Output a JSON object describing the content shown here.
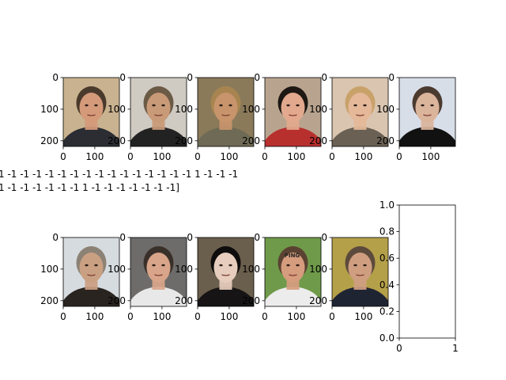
{
  "chart_data": [
    {
      "type": "image",
      "subject": "man-in-suit-speaking",
      "colors": {
        "bg": "#c9b28f",
        "skin": "#d49a7a",
        "hair": "#4a3a2c",
        "body": "#2b2d33"
      },
      "xticks": [
        "0",
        "100"
      ],
      "yticks": [
        "0",
        "100",
        "200"
      ]
    },
    {
      "type": "image",
      "subject": "man-hand-on-chin",
      "colors": {
        "bg": "#cfcac2",
        "skin": "#c99a78",
        "hair": "#6b5a45",
        "body": "#222222"
      },
      "xticks": [
        "0",
        "100"
      ],
      "yticks": [
        "0",
        "100",
        "200"
      ]
    },
    {
      "type": "image",
      "subject": "woman-long-hair",
      "colors": {
        "bg": "#8a7a5a",
        "skin": "#c8946c",
        "hair": "#a88550",
        "body": "#6e6a55"
      },
      "xticks": [
        "0",
        "100"
      ],
      "yticks": [
        "0",
        "100",
        "200"
      ]
    },
    {
      "type": "image",
      "subject": "man-pouting",
      "colors": {
        "bg": "#b8a48e",
        "skin": "#e2a98e",
        "hair": "#1e1814",
        "body": "#b8302e"
      },
      "xticks": [
        "0",
        "100"
      ],
      "yticks": [
        "0",
        "100",
        "200"
      ]
    },
    {
      "type": "image",
      "subject": "young-man-blond-hair",
      "colors": {
        "bg": "#d9c5b0",
        "skin": "#e4b899",
        "hair": "#c9a26a",
        "body": "#6a6054"
      },
      "xticks": [
        "0",
        "100"
      ],
      "yticks": [
        "0",
        "100",
        "200"
      ]
    },
    {
      "type": "image",
      "subject": "man-black-scarf",
      "colors": {
        "bg": "#d8dee8",
        "skin": "#dbb49c",
        "hair": "#4b3a30",
        "body": "#111111"
      },
      "xticks": [
        "0",
        "100"
      ],
      "yticks": [
        "0",
        "100",
        "200"
      ]
    },
    {
      "type": "image",
      "subject": "man-gray-hair",
      "colors": {
        "bg": "#d6dbe0",
        "skin": "#caa083",
        "hair": "#8b8275",
        "body": "#2a2420"
      },
      "xticks": [
        "0",
        "100"
      ],
      "yticks": [
        "0",
        "100",
        "200"
      ]
    },
    {
      "type": "image",
      "subject": "man-white-shirt",
      "colors": {
        "bg": "#6e6c6a",
        "skin": "#d8a58a",
        "hair": "#3a302a",
        "body": "#e8e8e8"
      },
      "xticks": [
        "0",
        "100"
      ],
      "yticks": [
        "0",
        "100",
        "200"
      ]
    },
    {
      "type": "image",
      "subject": "man-dark-hair-makeup",
      "colors": {
        "bg": "#6a5e4c",
        "skin": "#e6cdbd",
        "hair": "#0e0c0c",
        "body": "#161414"
      },
      "xticks": [
        "0",
        "100"
      ],
      "yticks": [
        "0",
        "100",
        "200"
      ]
    },
    {
      "type": "image",
      "subject": "man-white-ping-cap",
      "cap_text": "PING",
      "colors": {
        "bg": "#6f9a4a",
        "skin": "#d59c7e",
        "hair": "#5a4232",
        "body": "#ececec",
        "cap": "#f4f4f4"
      },
      "xticks": [
        "0",
        "100"
      ],
      "yticks": [
        "0",
        "100",
        "200"
      ]
    },
    {
      "type": "image",
      "subject": "man-in-suit-blue-background",
      "colors": {
        "bg": "#b5a04a",
        "skin": "#cf9e80",
        "hair": "#5c4a3c",
        "body": "#1f2433"
      },
      "xticks": [
        "0",
        "100"
      ],
      "yticks": [
        "0",
        "100",
        "200"
      ]
    },
    {
      "type": "empty-axes",
      "xticks": [
        "0",
        "1"
      ],
      "yticks": [
        "0.0",
        "0.2",
        "0.4",
        "0.6",
        "0.8",
        "1.0"
      ],
      "xlim": [
        0,
        1
      ],
      "ylim": [
        0,
        1
      ]
    }
  ],
  "overlay_text": {
    "line1": "1 -1 -1 -1 -1 -1 -1 -1 -1 -1 -1 -1 -1 -1 -1 -1  1 -1 -1 -1",
    "line2": "1 -1 -1 -1 -1 -1 -1  1 -1 -1 -1 -1 -1 -1 -1]"
  }
}
